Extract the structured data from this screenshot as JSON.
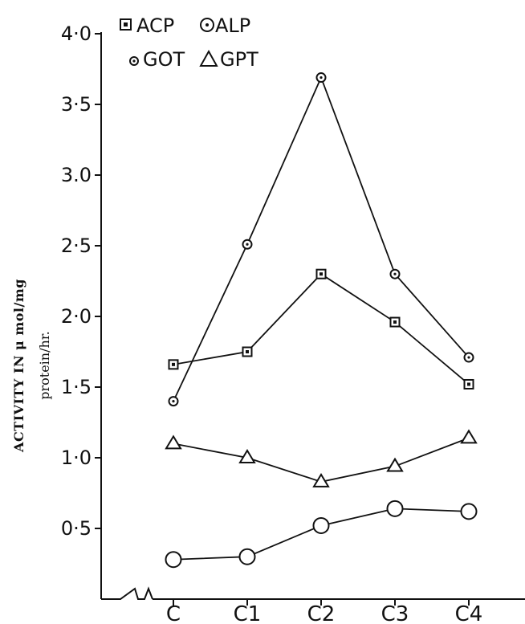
{
  "chart_data": {
    "type": "line",
    "title": "",
    "xlabel": "",
    "ylabel": "ACTIVITY IN μ mol/mg",
    "ylabel_line2": "protein/hr.",
    "categories": [
      "C",
      "C1",
      "C2",
      "C3",
      "C4"
    ],
    "ylim": [
      0,
      4.0
    ],
    "yticks": [
      {
        "value": 0.5,
        "label": "0·5"
      },
      {
        "value": 1.0,
        "label": "1·0"
      },
      {
        "value": 1.5,
        "label": "1·5"
      },
      {
        "value": 2.0,
        "label": "2·0"
      },
      {
        "value": 2.5,
        "label": "2·5"
      },
      {
        "value": 3.0,
        "label": "3.0"
      },
      {
        "value": 3.5,
        "label": "3·5"
      },
      {
        "value": 4.0,
        "label": "4·0"
      }
    ],
    "grid": false,
    "legend_position": "top-left",
    "legend": [
      {
        "name": "ACP",
        "marker": "square"
      },
      {
        "name": "ALP",
        "marker": "big-circle"
      },
      {
        "name": "GOT",
        "marker": "dot-circle"
      },
      {
        "name": "GPT",
        "marker": "triangle"
      }
    ],
    "series": [
      {
        "name": "ACP",
        "marker": "square",
        "values": [
          1.66,
          1.75,
          2.3,
          1.96,
          1.52
        ]
      },
      {
        "name": "ALP",
        "marker": "big-circle",
        "values": [
          0.28,
          0.3,
          0.52,
          0.64,
          0.62
        ]
      },
      {
        "name": "GOT",
        "marker": "dot-circle",
        "values": [
          1.4,
          2.51,
          3.69,
          2.3,
          1.71
        ]
      },
      {
        "name": "GPT",
        "marker": "triangle",
        "values": [
          1.1,
          1.0,
          0.83,
          0.94,
          1.14
        ]
      }
    ]
  }
}
